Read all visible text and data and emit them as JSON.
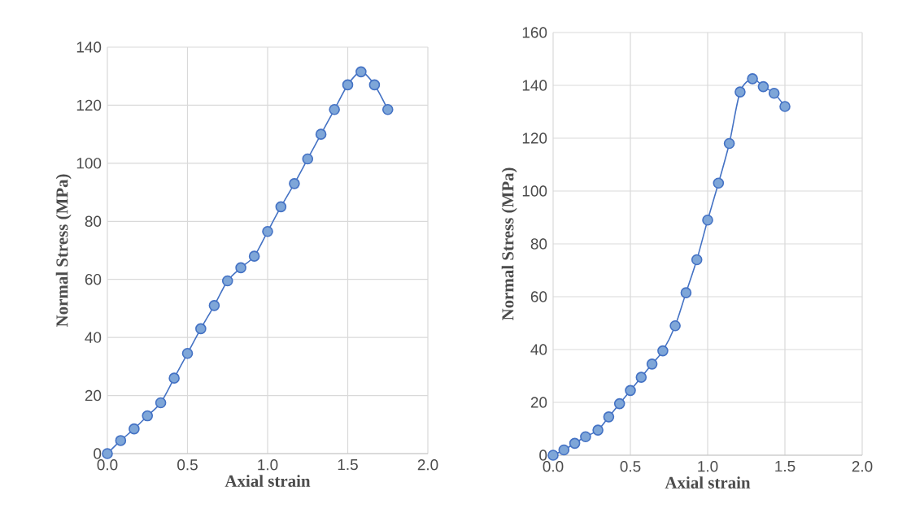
{
  "chart_data": [
    {
      "type": "line",
      "xlabel": "Axial strain",
      "ylabel": "Normal Stress (MPa)",
      "xlim": [
        0,
        2
      ],
      "ylim": [
        0,
        140
      ],
      "xticks": [
        {
          "value": 0,
          "label": "0.0"
        },
        {
          "value": 0.5,
          "label": "0.5"
        },
        {
          "value": 1,
          "label": "1.0"
        },
        {
          "value": 1.5,
          "label": "1.5"
        },
        {
          "value": 2,
          "label": "2.0"
        }
      ],
      "yticks": [
        0,
        20,
        40,
        60,
        80,
        100,
        120,
        140
      ],
      "grid": true,
      "marker": "circle",
      "series": [
        {
          "color": "#4472c4",
          "x": [
            0,
            0.083,
            0.167,
            0.25,
            0.333,
            0.417,
            0.5,
            0.583,
            0.667,
            0.75,
            0.833,
            0.917,
            1.0,
            1.083,
            1.167,
            1.25,
            1.333,
            1.417,
            1.5,
            1.583,
            1.667,
            1.75
          ],
          "values": [
            0,
            4.5,
            8.5,
            13,
            17.5,
            26,
            34.5,
            43,
            51,
            59.5,
            64,
            68,
            76.5,
            85,
            93,
            101.5,
            110,
            118.5,
            127,
            131.5,
            127,
            118.5
          ]
        }
      ]
    },
    {
      "type": "line",
      "xlabel": "Axial strain",
      "ylabel": "Normal Stress (MPa)",
      "xlim": [
        0,
        2
      ],
      "ylim": [
        0,
        160
      ],
      "xticks": [
        {
          "value": 0,
          "label": "0.0"
        },
        {
          "value": 0.5,
          "label": "0.5"
        },
        {
          "value": 1,
          "label": "1.0"
        },
        {
          "value": 1.5,
          "label": "1.5"
        },
        {
          "value": 2,
          "label": "2.0"
        }
      ],
      "yticks": [
        0,
        20,
        40,
        60,
        80,
        100,
        120,
        140,
        160
      ],
      "grid": true,
      "marker": "circle",
      "series": [
        {
          "color": "#4472c4",
          "x": [
            0,
            0.07,
            0.14,
            0.21,
            0.29,
            0.36,
            0.43,
            0.5,
            0.57,
            0.64,
            0.71,
            0.79,
            0.86,
            0.93,
            1.0,
            1.07,
            1.14,
            1.21,
            1.29,
            1.36,
            1.43,
            1.5
          ],
          "values": [
            0,
            2,
            4.5,
            7,
            9.5,
            14.5,
            19.5,
            24.5,
            29.5,
            34.5,
            39.5,
            49,
            61.5,
            74,
            89,
            103,
            118,
            137.5,
            142.5,
            139.5,
            137,
            132
          ]
        }
      ]
    }
  ]
}
